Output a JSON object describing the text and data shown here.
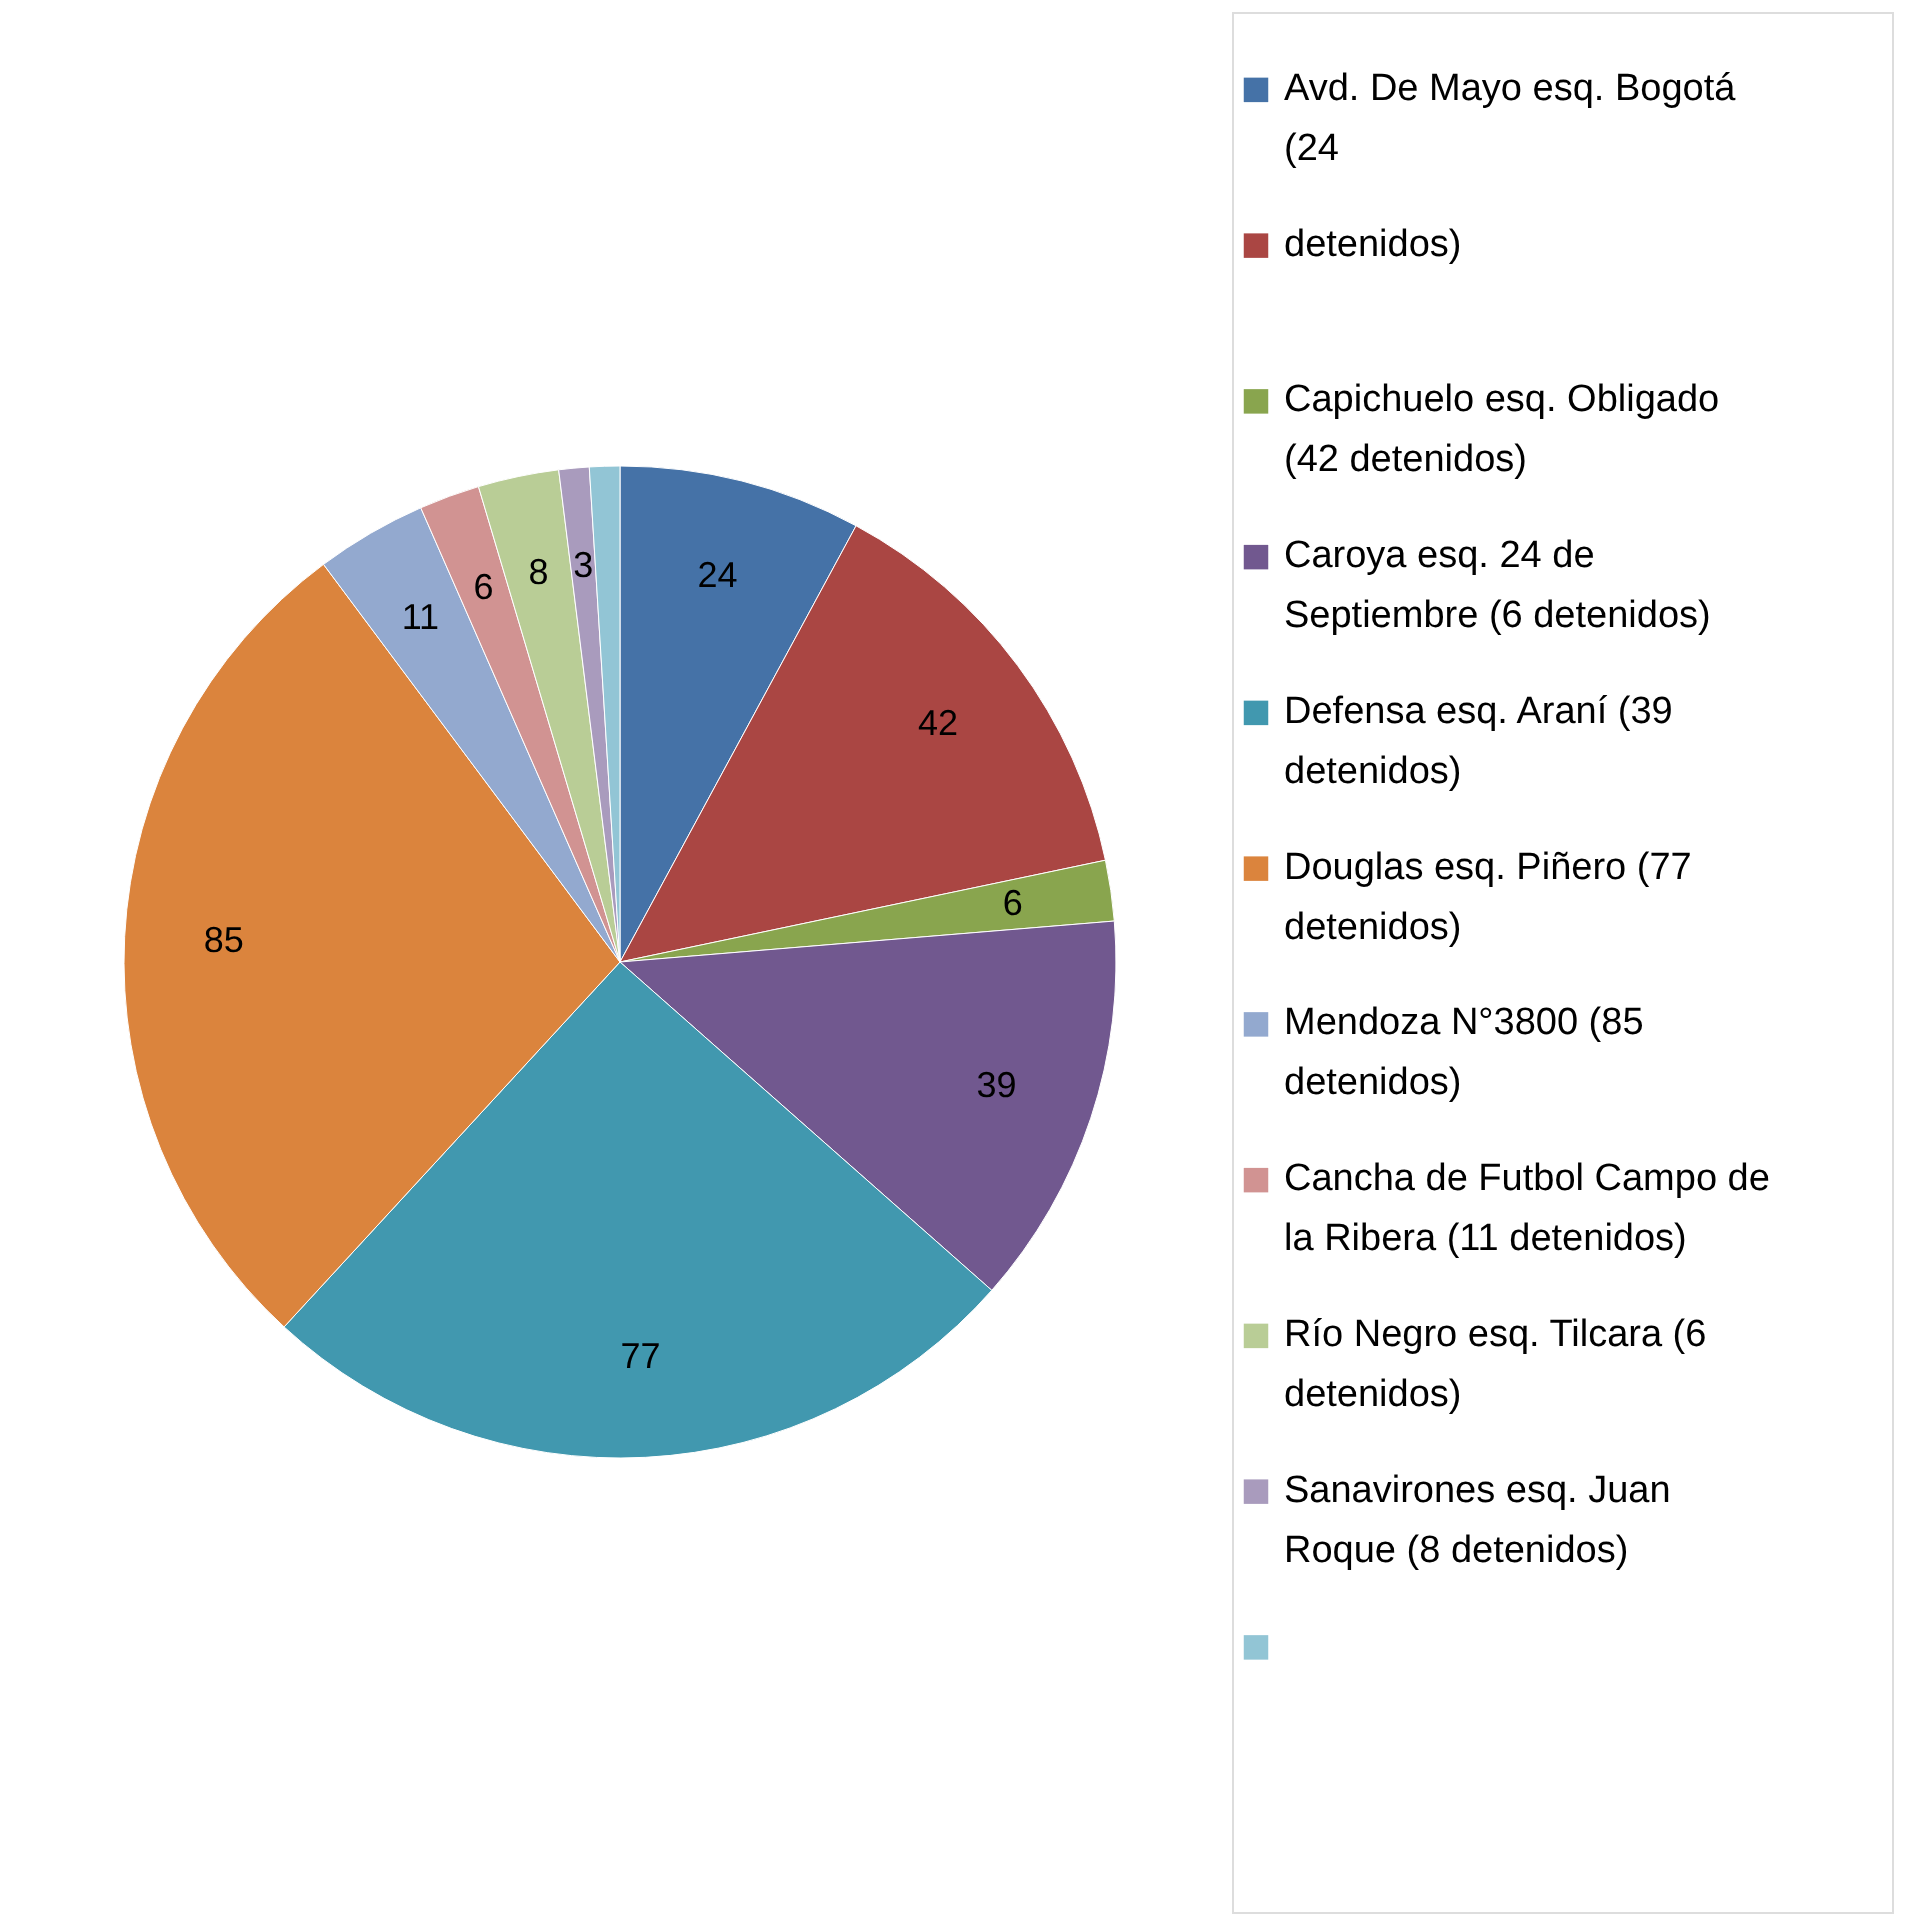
{
  "chart_data": {
    "type": "pie",
    "categories": [
      "Avd. De Mayo esq. Bogotá (24",
      "detenidos)",
      "Capichuelo esq. Obligado (42 detenidos)",
      "Caroya esq. 24 de Septiembre (6 detenidos)",
      "Defensa esq. Araní (39 detenidos)",
      "Douglas esq. Piñero (77 detenidos)",
      "Mendoza N°3800 (85 detenidos)",
      "Cancha de Futbol Campo de la Ribera (11 detenidos)",
      "Río Negro esq. Tilcara (6 detenidos)",
      "Sanavirones esq. Juan Roque (8 detenidos)",
      null
    ],
    "values": [
      24,
      42,
      6,
      39,
      77,
      85,
      11,
      6,
      8,
      3,
      3
    ],
    "value_labels": [
      "24",
      "42",
      "6",
      "39",
      "77",
      "85",
      "11",
      "6",
      "8",
      "3",
      null
    ],
    "colors": [
      "#4572a7",
      "#aa4643",
      "#89a54e",
      "#71588f",
      "#4198af",
      "#db843d",
      "#93a9cf",
      "#d19392",
      "#b9cd96",
      "#a99bbd",
      "#92c5d5"
    ],
    "legend": "right"
  }
}
